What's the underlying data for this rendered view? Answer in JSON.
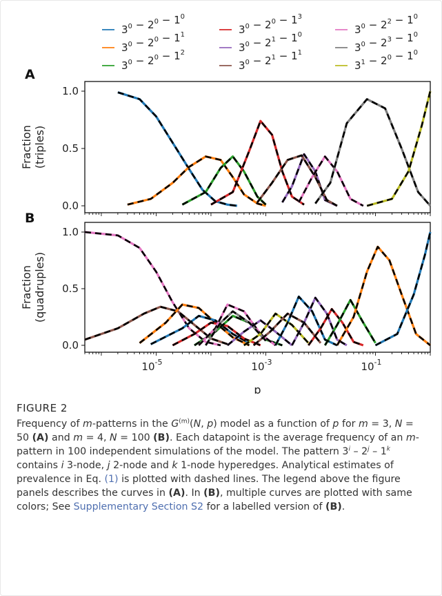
{
  "caption": {
    "label": "FIGURE 2",
    "p1": "Frequency of ",
    "m1": "m",
    "p2": "-patterns in the ",
    "gsym": "G",
    "gsup": "(m)",
    "p3": "(",
    "nvar": "N",
    "p4": ", ",
    "pvar": "p",
    "p5": ") model as a function of ",
    "pvar2": "p",
    "p6": " for ",
    "m2": "m",
    "p7": " = 3, ",
    "n2": "N",
    "p8": " = 50 ",
    "refA": "(A)",
    "p9": " and ",
    "m3": "m",
    "p10": " = 4, ",
    "n3": "N",
    "p11": " = 100 ",
    "refB": "(B)",
    "p12": ". Each datapoint is the average frequency of an ",
    "m4": "m",
    "p13": "-pattern in 100 independent simulations of the model. The pattern 3",
    "supi": "i",
    "p14": " – 2",
    "supj": "j",
    "p15": " – 1",
    "supk": "k",
    "p16": " contains ",
    "ivar": "i",
    "p17": " 3-node, ",
    "jvar": "j",
    "p18": " 2-node and ",
    "kvar": "k",
    "p19": " 1-node hyperedges. Analytical estimates of prevalence in Eq. ",
    "eqref": "(1)",
    "p20": " is plotted with dashed lines. The legend above the figure panels describes the curves in ",
    "refA2": "(A)",
    "p21": ". In ",
    "refB2": "(B)",
    "p22": ", multiple curves are plotted with same colors; See ",
    "supp": "Supplementary Section S2",
    "p23": " for a labelled version of ",
    "refB3": "(B)",
    "p24": "."
  },
  "chart_data": [
    {
      "type": "line",
      "panel": "A",
      "xscale": "log",
      "xlim": [
        5e-07,
        1
      ],
      "ylim": [
        0,
        1
      ],
      "xlabel": "",
      "ylabel": "Fraction\n(triples)",
      "yticks": [
        "0.0",
        "0.5",
        "1.0"
      ],
      "legend_placement": "top (outside)",
      "series": [
        {
          "name": "3^0 − 2^0 − 1^0",
          "color": "#1f77b4",
          "points": [
            [
              2e-06,
              0.99
            ],
            [
              5e-06,
              0.93
            ],
            [
              1e-05,
              0.78
            ],
            [
              2e-05,
              0.55
            ],
            [
              4e-05,
              0.32
            ],
            [
              7e-05,
              0.14
            ],
            [
              0.00012,
              0.04
            ],
            [
              0.0002,
              0.01
            ],
            [
              0.0003,
              0.0
            ]
          ]
        },
        {
          "name": "3^0 − 2^0 − 1^1",
          "color": "#ff7f0e",
          "points": [
            [
              3e-06,
              0.01
            ],
            [
              8e-06,
              0.06
            ],
            [
              2e-05,
              0.2
            ],
            [
              4e-05,
              0.34
            ],
            [
              8e-05,
              0.43
            ],
            [
              0.00015,
              0.4
            ],
            [
              0.00025,
              0.25
            ],
            [
              0.0004,
              0.1
            ],
            [
              0.0007,
              0.02
            ],
            [
              0.001,
              0.0
            ]
          ]
        },
        {
          "name": "3^0 − 2^0 − 1^2",
          "color": "#2ca02c",
          "points": [
            [
              3e-05,
              0.01
            ],
            [
              8e-05,
              0.12
            ],
            [
              0.00015,
              0.33
            ],
            [
              0.00025,
              0.43
            ],
            [
              0.0004,
              0.3
            ],
            [
              0.0007,
              0.08
            ],
            [
              0.001,
              0.01
            ]
          ]
        },
        {
          "name": "3^0 − 2^0 − 1^3",
          "color": "#d62728",
          "points": [
            [
              0.0001,
              0.01
            ],
            [
              0.00025,
              0.12
            ],
            [
              0.0005,
              0.48
            ],
            [
              0.0008,
              0.74
            ],
            [
              0.0013,
              0.62
            ],
            [
              0.002,
              0.3
            ],
            [
              0.003,
              0.08
            ],
            [
              0.005,
              0.01
            ]
          ]
        },
        {
          "name": "3^0 − 2^1 − 1^0",
          "color": "#9467bd",
          "points": [
            [
              0.002,
              0.03
            ],
            [
              0.003,
              0.17
            ],
            [
              0.005,
              0.45
            ],
            [
              0.008,
              0.3
            ],
            [
              0.012,
              0.05
            ],
            [
              0.02,
              0.0
            ]
          ]
        },
        {
          "name": "3^0 − 2^1 − 1^1",
          "color": "#8c564b",
          "points": [
            [
              0.0007,
              0.03
            ],
            [
              0.0013,
              0.2
            ],
            [
              0.0025,
              0.4
            ],
            [
              0.0045,
              0.44
            ],
            [
              0.008,
              0.25
            ],
            [
              0.013,
              0.05
            ],
            [
              0.02,
              0.0
            ]
          ]
        },
        {
          "name": "3^0 − 2^2 − 1^0",
          "color": "#e377c2",
          "points": [
            [
              0.004,
              0.03
            ],
            [
              0.007,
              0.25
            ],
            [
              0.012,
              0.43
            ],
            [
              0.02,
              0.3
            ],
            [
              0.035,
              0.06
            ],
            [
              0.06,
              0.0
            ]
          ]
        },
        {
          "name": "3^0 − 2^3 − 1^0",
          "color": "#7f7f7f",
          "points": [
            [
              0.008,
              0.02
            ],
            [
              0.015,
              0.2
            ],
            [
              0.03,
              0.72
            ],
            [
              0.07,
              0.93
            ],
            [
              0.15,
              0.85
            ],
            [
              0.3,
              0.5
            ],
            [
              0.6,
              0.12
            ],
            [
              1,
              0.0
            ]
          ]
        },
        {
          "name": "3^1 − 2^0 − 1^0",
          "color": "#bcbd22",
          "points": [
            [
              0.07,
              0.0
            ],
            [
              0.2,
              0.06
            ],
            [
              0.4,
              0.3
            ],
            [
              0.7,
              0.7
            ],
            [
              1,
              1.0
            ]
          ]
        }
      ]
    },
    {
      "type": "line",
      "panel": "B",
      "xscale": "log",
      "xlim": [
        5e-07,
        1
      ],
      "ylim": [
        0,
        1
      ],
      "xlabel": "p",
      "ylabel": "Fraction\n(quadruples)",
      "yticks": [
        "0.0",
        "0.5",
        "1.0"
      ],
      "xticks": [
        "10^-5",
        "10^-3",
        "10^-1"
      ],
      "series": [
        {
          "color": "#e377c2",
          "points": [
            [
              5e-07,
              1.0
            ],
            [
              2e-06,
              0.97
            ],
            [
              5e-06,
              0.86
            ],
            [
              1e-05,
              0.65
            ],
            [
              2e-05,
              0.38
            ],
            [
              4e-05,
              0.15
            ],
            [
              8e-05,
              0.03
            ],
            [
              0.00015,
              0.0
            ]
          ]
        },
        {
          "color": "#8c564b",
          "points": [
            [
              5e-07,
              0.05
            ],
            [
              2e-06,
              0.15
            ],
            [
              6e-06,
              0.28
            ],
            [
              1.2e-05,
              0.34
            ],
            [
              2.5e-05,
              0.3
            ],
            [
              5e-05,
              0.18
            ],
            [
              0.0001,
              0.06
            ],
            [
              0.0002,
              0.01
            ]
          ]
        },
        {
          "color": "#ff7f0e",
          "points": [
            [
              5e-06,
              0.02
            ],
            [
              1.5e-05,
              0.2
            ],
            [
              3e-05,
              0.36
            ],
            [
              6e-05,
              0.33
            ],
            [
              0.00012,
              0.2
            ],
            [
              0.00025,
              0.07
            ],
            [
              0.0005,
              0.0
            ]
          ]
        },
        {
          "color": "#1f77b4",
          "points": [
            [
              8e-06,
              0.01
            ],
            [
              3e-05,
              0.15
            ],
            [
              6e-05,
              0.26
            ],
            [
              0.00012,
              0.22
            ],
            [
              0.00025,
              0.1
            ],
            [
              0.0005,
              0.02
            ]
          ]
        },
        {
          "color": "#d62728",
          "points": [
            [
              2e-05,
              0.0
            ],
            [
              5e-05,
              0.1
            ],
            [
              0.0001,
              0.2
            ],
            [
              0.0002,
              0.17
            ],
            [
              0.0004,
              0.06
            ],
            [
              0.0008,
              0.0
            ]
          ]
        },
        {
          "color": "#2ca02c",
          "points": [
            [
              5e-05,
              0.0
            ],
            [
              0.00012,
              0.12
            ],
            [
              0.00025,
              0.26
            ],
            [
              0.0005,
              0.2
            ],
            [
              0.001,
              0.05
            ],
            [
              0.002,
              0.0
            ]
          ]
        },
        {
          "color": "#e377c2",
          "points": [
            [
              6e-05,
              0.0
            ],
            [
              0.00012,
              0.15
            ],
            [
              0.0002,
              0.36
            ],
            [
              0.0004,
              0.3
            ],
            [
              0.0008,
              0.1
            ],
            [
              0.0015,
              0.0
            ]
          ]
        },
        {
          "color": "#7f7f7f",
          "points": [
            [
              8e-05,
              0.0
            ],
            [
              0.00015,
              0.2
            ],
            [
              0.00025,
              0.3
            ],
            [
              0.0005,
              0.2
            ],
            [
              0.001,
              0.04
            ]
          ]
        },
        {
          "color": "#9467bd",
          "points": [
            [
              0.0002,
              0.0
            ],
            [
              0.0004,
              0.12
            ],
            [
              0.0008,
              0.22
            ],
            [
              0.0015,
              0.12
            ],
            [
              0.003,
              0.0
            ]
          ]
        },
        {
          "color": "#bcbd22",
          "points": [
            [
              0.0004,
              0.0
            ],
            [
              0.0008,
              0.1
            ],
            [
              0.0015,
              0.28
            ],
            [
              0.003,
              0.18
            ],
            [
              0.006,
              0.02
            ]
          ]
        },
        {
          "color": "#8c564b",
          "points": [
            [
              0.0006,
              0.0
            ],
            [
              0.0012,
              0.12
            ],
            [
              0.0025,
              0.28
            ],
            [
              0.005,
              0.2
            ],
            [
              0.01,
              0.02
            ]
          ]
        },
        {
          "color": "#1f77b4",
          "points": [
            [
              0.0015,
              0.0
            ],
            [
              0.0025,
              0.2
            ],
            [
              0.004,
              0.43
            ],
            [
              0.007,
              0.3
            ],
            [
              0.012,
              0.05
            ],
            [
              0.02,
              0.0
            ]
          ]
        },
        {
          "color": "#9467bd",
          "points": [
            [
              0.003,
              0.0
            ],
            [
              0.005,
              0.2
            ],
            [
              0.008,
              0.42
            ],
            [
              0.013,
              0.28
            ],
            [
              0.02,
              0.05
            ],
            [
              0.03,
              0.0
            ]
          ]
        },
        {
          "color": "#d62728",
          "points": [
            [
              0.006,
              0.0
            ],
            [
              0.01,
              0.15
            ],
            [
              0.016,
              0.32
            ],
            [
              0.025,
              0.2
            ],
            [
              0.04,
              0.03
            ],
            [
              0.06,
              0.0
            ]
          ]
        },
        {
          "color": "#2ca02c",
          "points": [
            [
              0.012,
              0.0
            ],
            [
              0.02,
              0.18
            ],
            [
              0.035,
              0.4
            ],
            [
              0.06,
              0.2
            ],
            [
              0.1,
              0.02
            ]
          ]
        },
        {
          "color": "#ff7f0e",
          "points": [
            [
              0.02,
              0.0
            ],
            [
              0.04,
              0.25
            ],
            [
              0.07,
              0.65
            ],
            [
              0.11,
              0.87
            ],
            [
              0.18,
              0.75
            ],
            [
              0.3,
              0.45
            ],
            [
              0.55,
              0.1
            ],
            [
              1,
              0.0
            ]
          ]
        },
        {
          "color": "#1f77b4",
          "points": [
            [
              0.1,
              0.0
            ],
            [
              0.25,
              0.1
            ],
            [
              0.5,
              0.45
            ],
            [
              0.8,
              0.8
            ],
            [
              1,
              1.0
            ]
          ]
        }
      ]
    }
  ],
  "legend": {
    "columns": [
      [
        {
          "color": "#1f77b4",
          "b1": "0",
          "b2": "0",
          "b3": "0"
        },
        {
          "color": "#ff7f0e",
          "b1": "0",
          "b2": "0",
          "b3": "1"
        },
        {
          "color": "#2ca02c",
          "b1": "0",
          "b2": "0",
          "b3": "2"
        }
      ],
      [
        {
          "color": "#d62728",
          "b1": "0",
          "b2": "0",
          "b3": "3"
        },
        {
          "color": "#9467bd",
          "b1": "0",
          "b2": "1",
          "b3": "0"
        },
        {
          "color": "#8c564b",
          "b1": "0",
          "b2": "1",
          "b3": "1"
        }
      ],
      [
        {
          "color": "#e377c2",
          "b1": "0",
          "b2": "2",
          "b3": "0"
        },
        {
          "color": "#7f7f7f",
          "b1": "0",
          "b2": "3",
          "b3": "0"
        },
        {
          "color": "#bcbd22",
          "b1": "1",
          "b2": "0",
          "b3": "0"
        }
      ]
    ],
    "base3": "3",
    "base2": "2",
    "base1": "1",
    "minus": " − "
  },
  "panel_labels": {
    "a": "A",
    "b": "B"
  }
}
